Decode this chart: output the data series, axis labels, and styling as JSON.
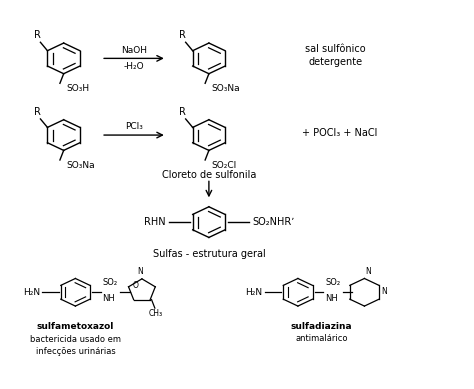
{
  "bg_color": "#ffffff",
  "text_color": "#000000",
  "line_color": "#000000",
  "annotations": {
    "reaction1_label": "sal sulfônico\ndetergente",
    "reaction1_reactant_sub": "SO₃H",
    "reaction1_product_sub": "SO₃Na",
    "reaction2_reagent": "PCl₃",
    "reaction2_product_sub": "SO₂Cl",
    "reaction2_extra": "+ POCl₃ + NaCl",
    "reaction2_reactant_sub": "SO₃Na",
    "reaction2_label": "Cloreto de sulfonila",
    "reaction3_left": "RHN",
    "reaction3_right": "SO₂NHRʼ",
    "reaction3_label": "Sulfas - estrutura geral",
    "sulfametoxazol_name": "sulfametoxazol",
    "sulfametoxazol_desc": "bactericida usado em\ninfecções urinárias",
    "sulfadiazina_name": "sulfadiazina",
    "sulfadiazina_desc": "antimalárico",
    "R_label": "R",
    "H2N_label": "H₂N",
    "NaOH": "NaOH",
    "H2O": "-H₂O"
  }
}
